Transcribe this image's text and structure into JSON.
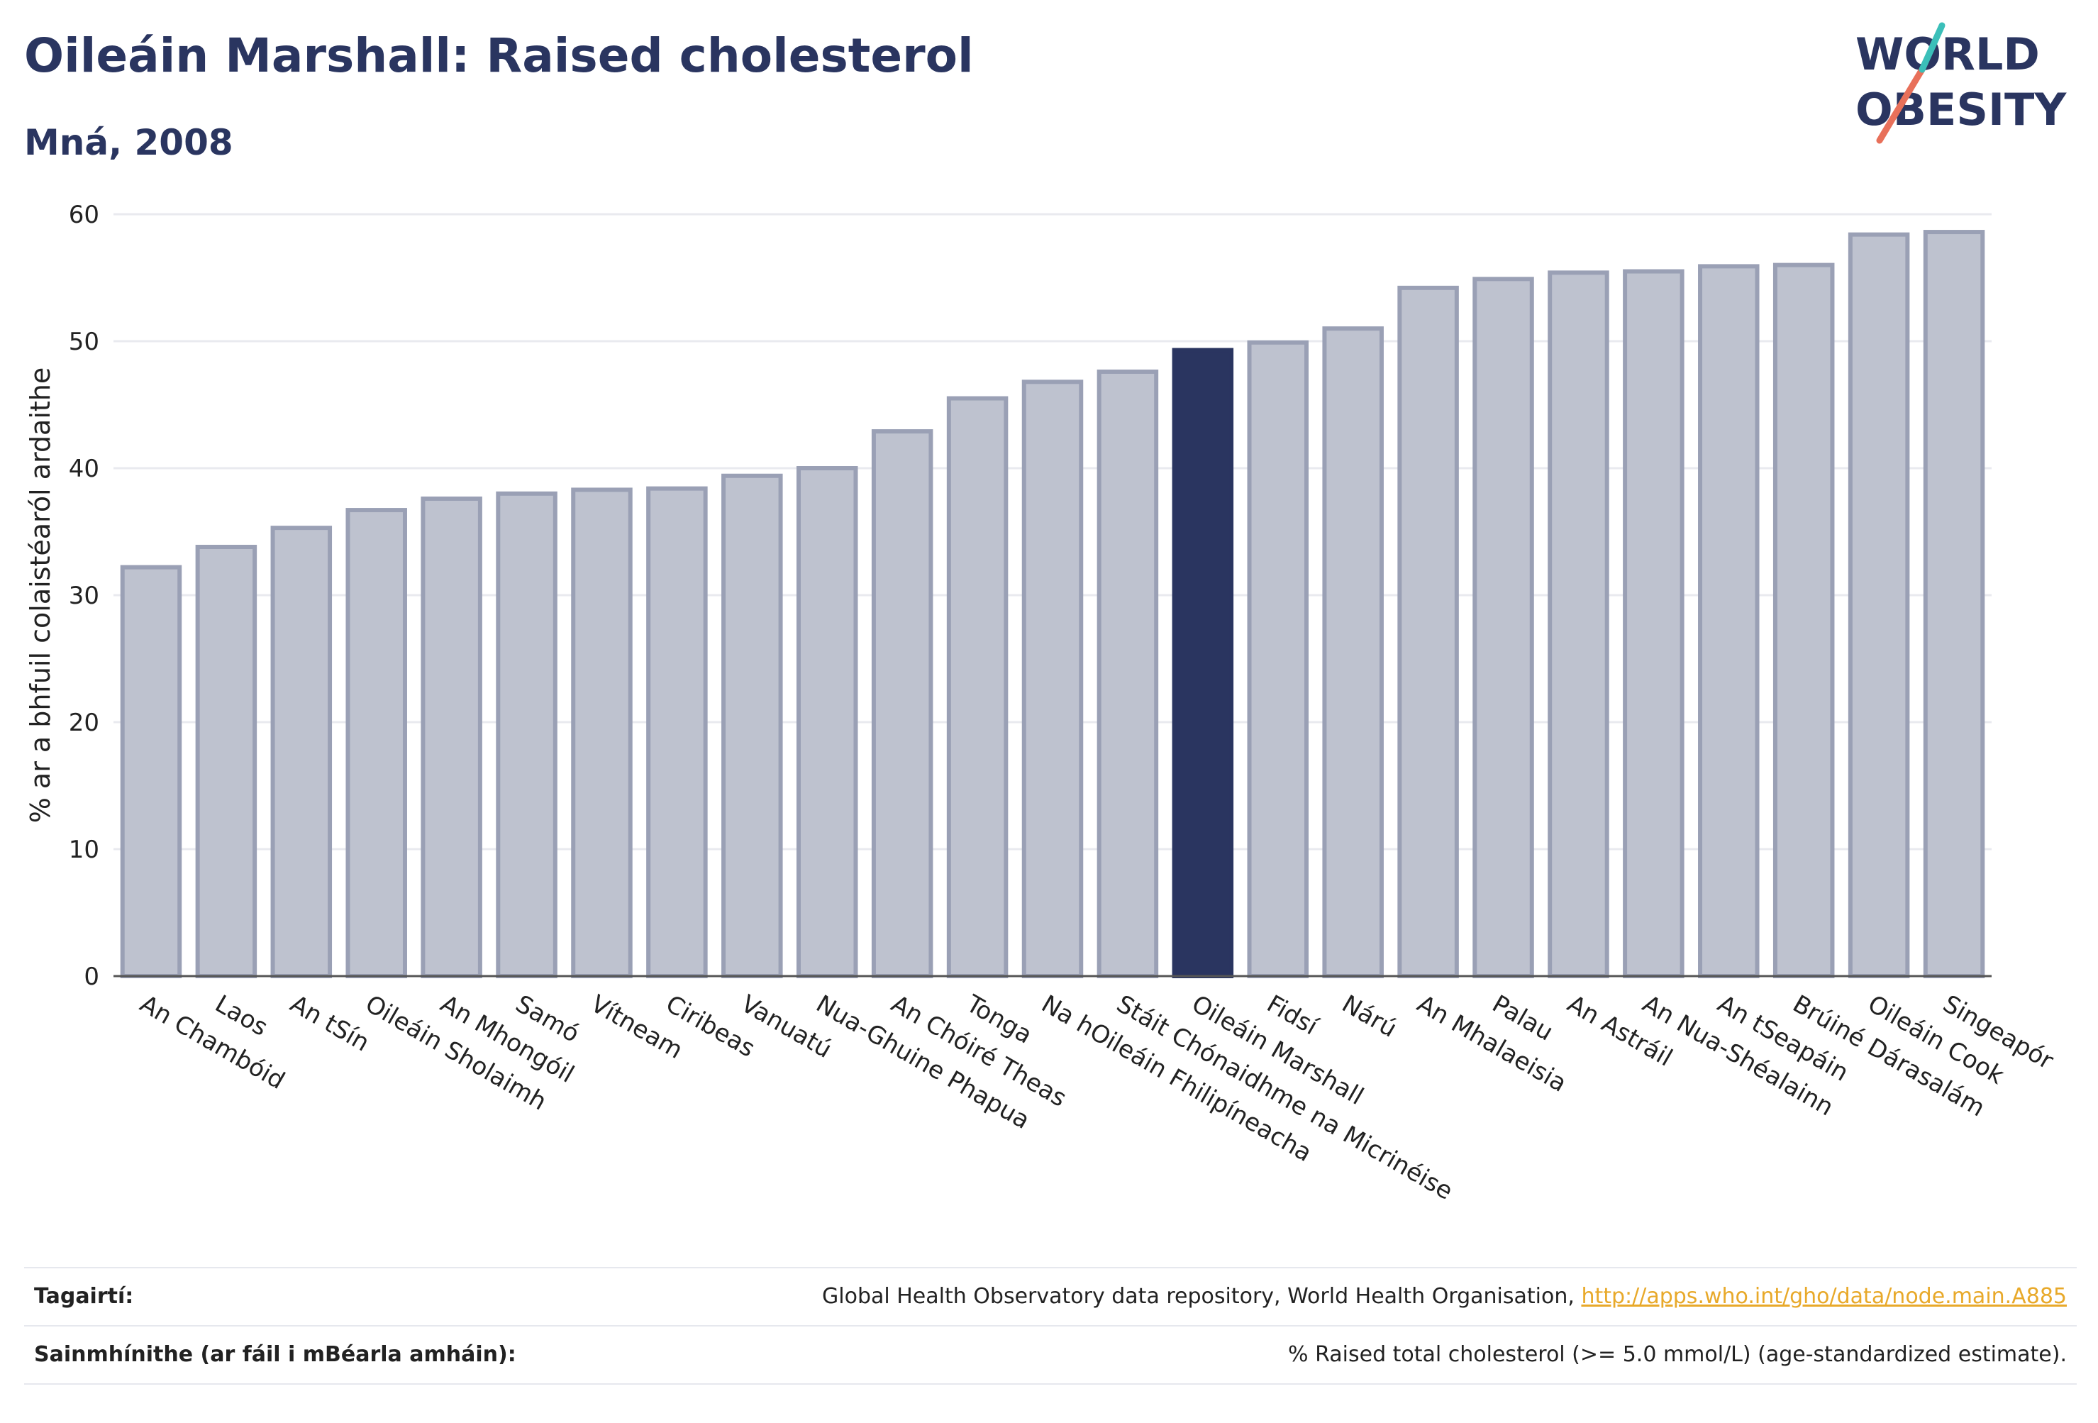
{
  "header": {
    "title": "Oileáin Marshall: Raised cholesterol",
    "subtitle": "Mná, 2008"
  },
  "logo": {
    "line1": "WORLD",
    "line2": "OBESITY",
    "accent_teal": "#3bbfb9",
    "accent_coral": "#e8705a",
    "color": "#2a3560"
  },
  "colors": {
    "bar": "#bec2cf",
    "bar_edge": "#9aa0b5",
    "highlight": "#2a3560",
    "grid": "#e9eaef"
  },
  "chart_data": {
    "type": "bar",
    "categories": [
      "An Chambóid",
      "Laos",
      "An tSín",
      "Oileáin Sholaimh",
      "An Mhongóil",
      "Samó",
      "Vítneam",
      "Ciribeas",
      "Vanuatú",
      "Nua-Ghuine Phapua",
      "An Chóiré Theas",
      "Tonga",
      "Na hOileáin Fhilipíneacha",
      "Stáit Chónaidhme na Micrinéise",
      "Oileáin Marshall",
      "Fidsí",
      "Nárú",
      "An Mhalaeisia",
      "Palau",
      "An Astráil",
      "An Nua-Shéalainn",
      "An tSeapáin",
      "Brúiné Dárasalám",
      "Oileáin Cook",
      "Singeapór"
    ],
    "values": [
      32.2,
      33.8,
      35.3,
      36.7,
      37.6,
      38.0,
      38.3,
      38.4,
      39.4,
      40.0,
      42.9,
      45.5,
      46.8,
      47.6,
      49.3,
      49.9,
      51.0,
      54.2,
      54.9,
      55.4,
      55.5,
      55.9,
      56.0,
      58.4,
      58.6
    ],
    "highlight": "Oileáin Marshall",
    "ylabel": "% ar a bhfuil colaistéaról ardaithe",
    "ylim": [
      0,
      60
    ],
    "yticks": [
      0,
      10,
      20,
      30,
      40,
      50,
      60
    ],
    "grid": true
  },
  "footer": {
    "references_label": "Tagairtí:",
    "references_text": "Global Health Observatory data repository, World Health Organisation, ",
    "references_link": "http://apps.who.int/gho/data/node.main.A885",
    "definitions_label": "Sainmhínithe (ar fáil i mBéarla amháin):",
    "definitions_text": "% Raised total cholesterol (>= 5.0 mmol/L) (age-standardized estimate)."
  }
}
